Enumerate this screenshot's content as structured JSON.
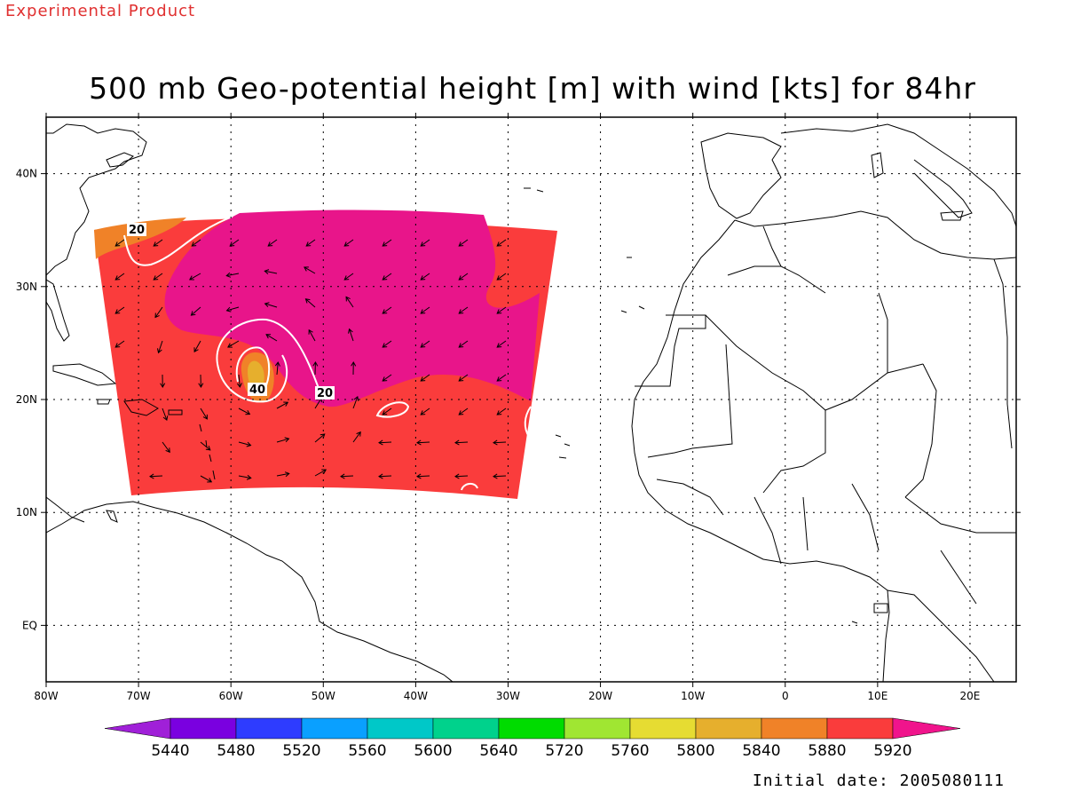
{
  "header": {
    "experimental_label": "Experimental Product",
    "title": "500 mb Geo-potential height [m] with wind [kts] for 84hr"
  },
  "footer": {
    "initial_date": "Initial date: 2005080111"
  },
  "map": {
    "lon_range": [
      -80,
      25
    ],
    "lat_range": [
      -5,
      45
    ],
    "lon_ticks": [
      {
        "lon": -80,
        "label": "80W"
      },
      {
        "lon": -70,
        "label": "70W"
      },
      {
        "lon": -60,
        "label": "60W"
      },
      {
        "lon": -50,
        "label": "50W"
      },
      {
        "lon": -40,
        "label": "40W"
      },
      {
        "lon": -30,
        "label": "30W"
      },
      {
        "lon": -20,
        "label": "20W"
      },
      {
        "lon": -10,
        "label": "10W"
      },
      {
        "lon": 0,
        "label": "0"
      },
      {
        "lon": 10,
        "label": "10E"
      },
      {
        "lon": 20,
        "label": "20E"
      }
    ],
    "lat_ticks": [
      {
        "lat": 40,
        "label": "40N"
      },
      {
        "lat": 30,
        "label": "30N"
      },
      {
        "lat": 20,
        "label": "20N"
      },
      {
        "lat": 10,
        "label": "10N"
      },
      {
        "lat": 0,
        "label": "EQ"
      }
    ],
    "contour_labels": [
      "20",
      "40",
      "20"
    ]
  },
  "colorbar": {
    "labels": [
      "5440",
      "5480",
      "5520",
      "5560",
      "5600",
      "5640",
      "5720",
      "5760",
      "5800",
      "5840",
      "5880",
      "5920"
    ],
    "colors": [
      "#a020d8",
      "#7a00e0",
      "#2e3cff",
      "#0aa0ff",
      "#00c8c8",
      "#00d28c",
      "#00dc00",
      "#a0e632",
      "#e6dc32",
      "#e6af2d",
      "#f08228",
      "#fa3c3c",
      "#f0148c"
    ]
  },
  "shading": {
    "max_color": "#e8158a",
    "mid_color": "#fa3c3c",
    "orange_color": "#f08228",
    "gold_color": "#e6af2d"
  }
}
